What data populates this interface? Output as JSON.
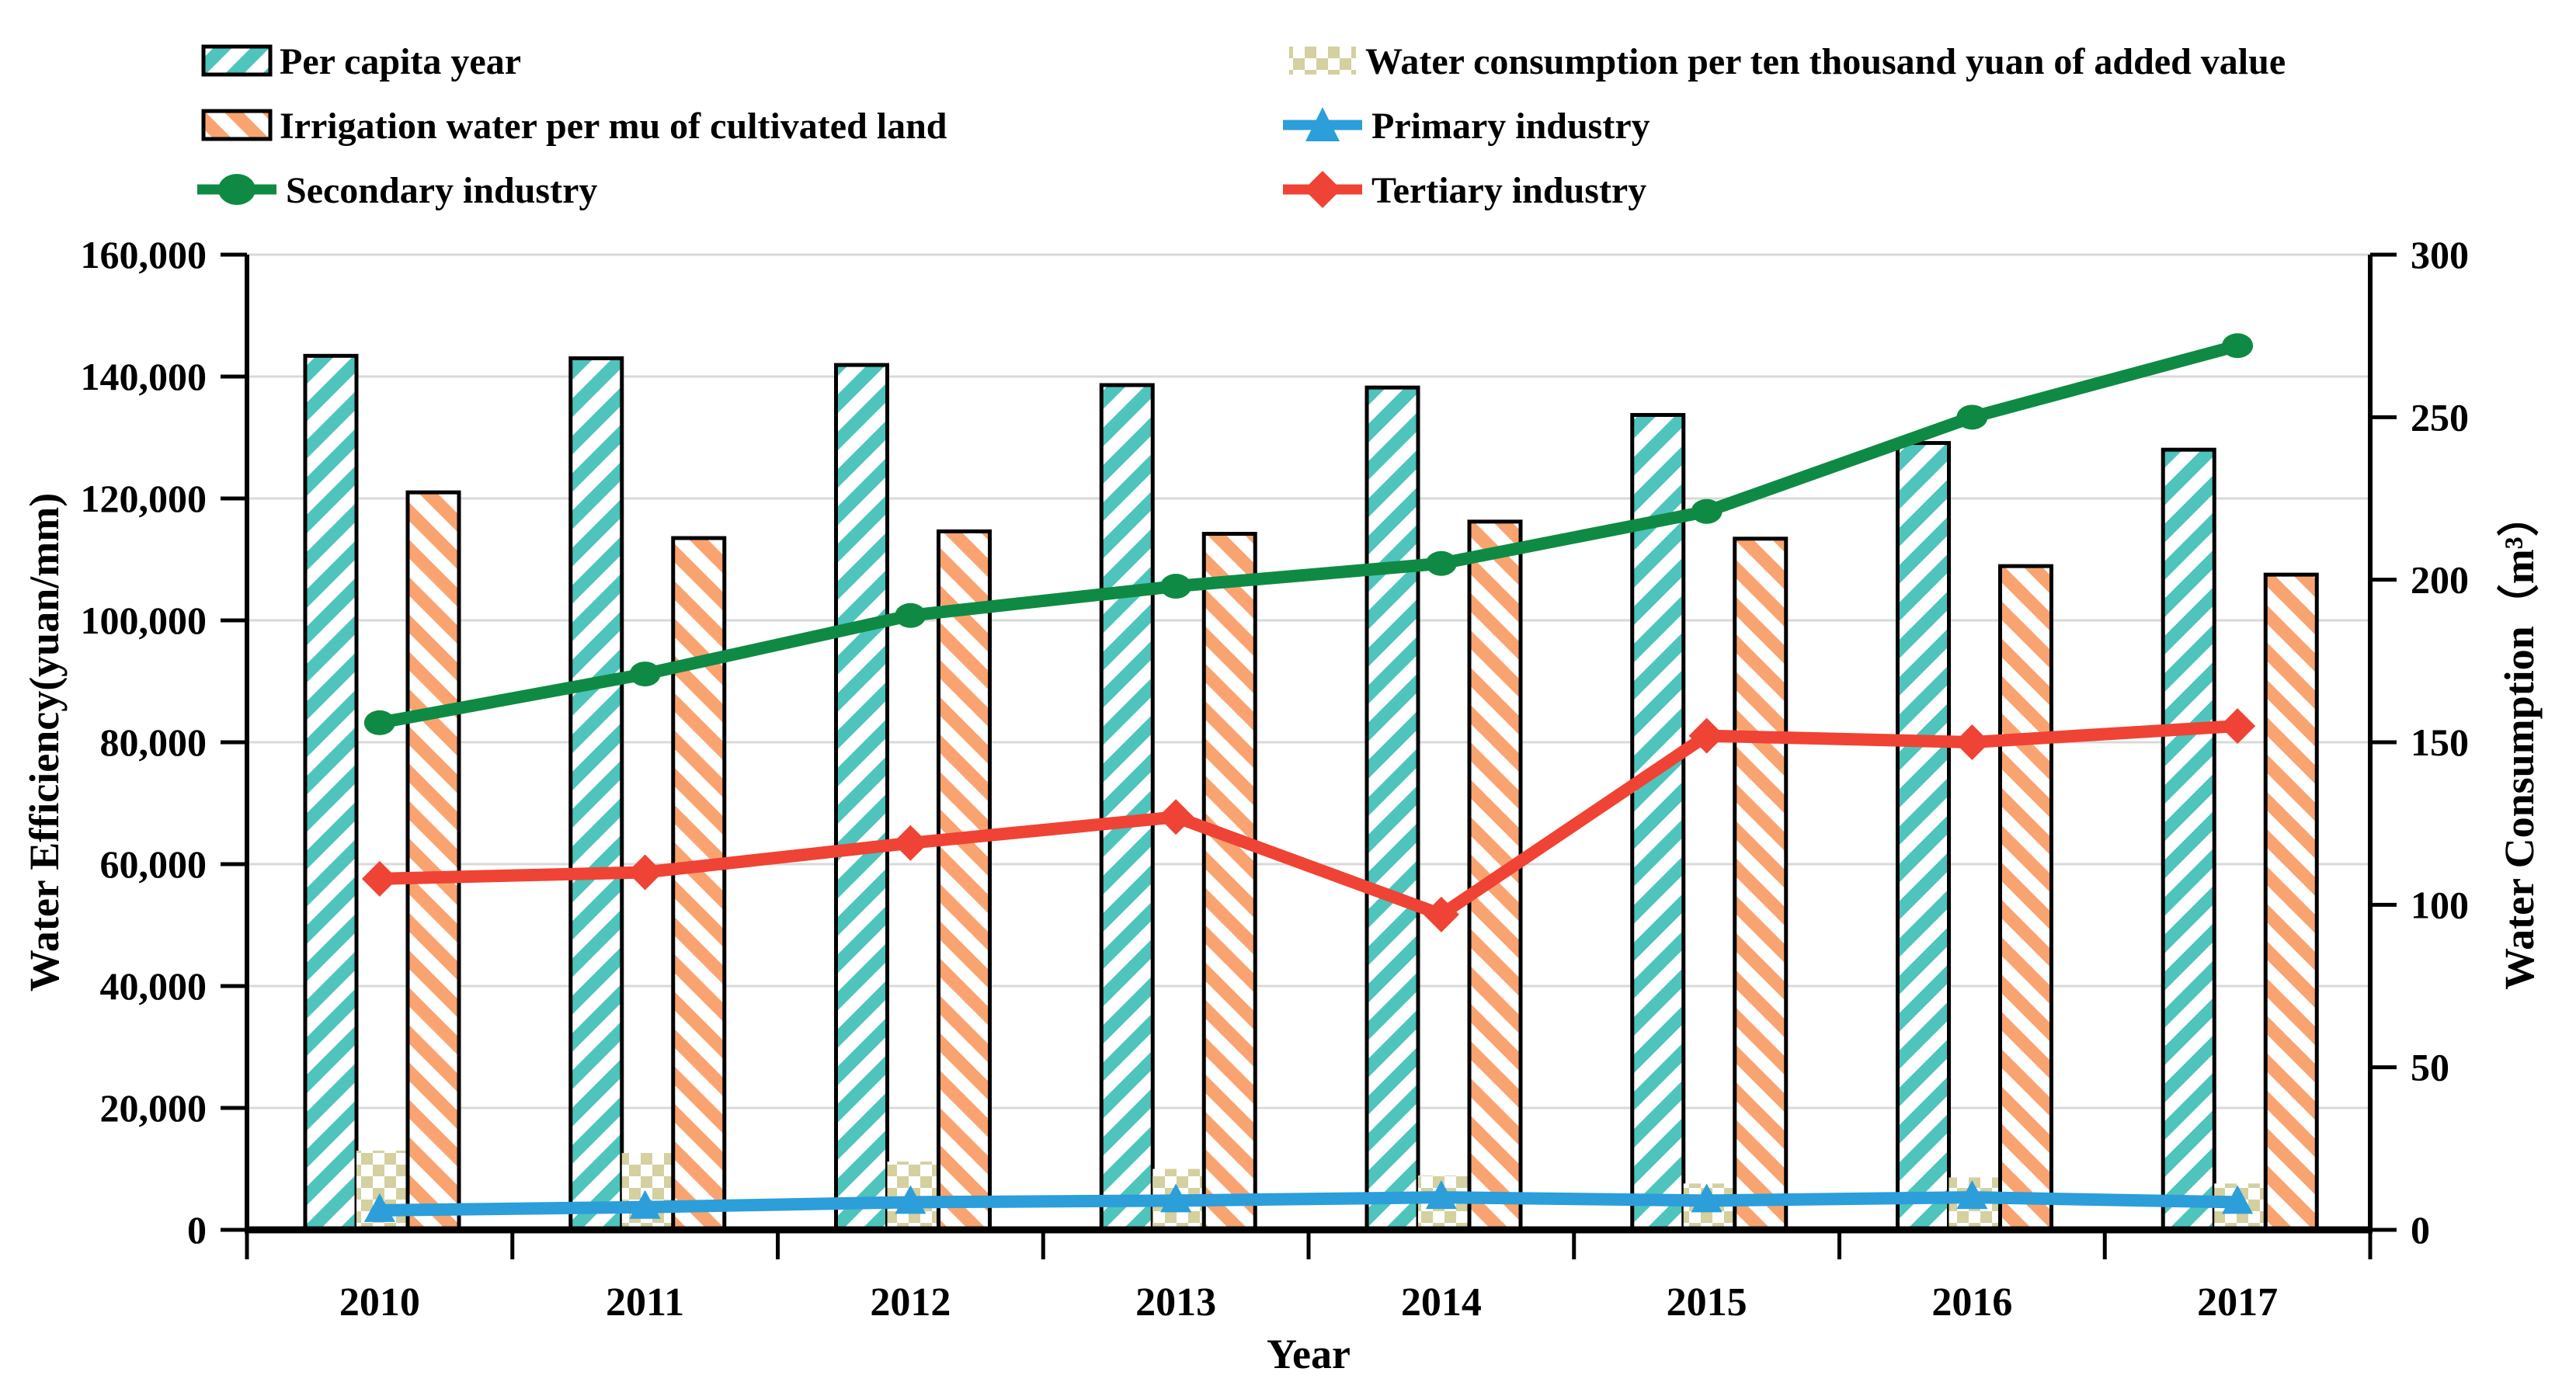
{
  "chart_data": {
    "type": "combo-bar-line",
    "categories": [
      "2010",
      "2011",
      "2012",
      "2013",
      "2014",
      "2015",
      "2016",
      "2017"
    ],
    "x_axis": {
      "title": "Year"
    },
    "left_axis": {
      "title": "Water Efficiency(yuan/mm)",
      "min": 0,
      "max": 160000,
      "step": 20000,
      "tick_labels": [
        "0",
        "20,000",
        "40,000",
        "60,000",
        "80,000",
        "100,000",
        "120,000",
        "140,000",
        "160,000"
      ]
    },
    "right_axis": {
      "title": "Water Consumption（m³）",
      "min": 0,
      "max": 300,
      "step": 50,
      "tick_labels": [
        "0",
        "50",
        "100",
        "150",
        "200",
        "250",
        "300"
      ]
    },
    "grid": {
      "horizontal": true,
      "color": "#d9d9d9"
    },
    "axis_color": "#000000",
    "series": [
      {
        "name": "Per capita year",
        "type": "bar",
        "axis": "left",
        "pattern": "teal-hatch",
        "color": "#4ec4bc",
        "values": [
          143400,
          143000,
          141900,
          138600,
          138200,
          133700,
          129100,
          128000
        ]
      },
      {
        "name": "Water consumption per ten thousand yuan of added value",
        "type": "bar",
        "axis": "left",
        "pattern": "khaki-check",
        "color": "#d4d0a0",
        "values": [
          13000,
          12600,
          11200,
          10000,
          8900,
          7600,
          8600,
          7600
        ]
      },
      {
        "name": "Irrigation water per mu of cultivated land",
        "type": "bar",
        "axis": "left",
        "pattern": "orange-hatch",
        "color": "#f9a470",
        "values": [
          121000,
          113500,
          114600,
          114200,
          116200,
          113400,
          108900,
          107500
        ]
      },
      {
        "name": "Primary industry",
        "type": "line",
        "axis": "right",
        "marker": "triangle",
        "color": "#2c9ed9",
        "values": [
          6,
          7,
          8.5,
          9,
          10,
          9,
          10,
          8.5
        ]
      },
      {
        "name": "Secondary industry",
        "type": "line",
        "axis": "right",
        "marker": "circle",
        "color": "#0f8a44",
        "values": [
          156,
          171,
          189,
          198,
          205,
          221,
          250,
          272
        ]
      },
      {
        "name": "Tertiary industry",
        "type": "line",
        "axis": "right",
        "marker": "diamond",
        "color": "#ef4335",
        "values": [
          108,
          110,
          119,
          127,
          97,
          152,
          150,
          155
        ]
      }
    ],
    "legend_position": "top"
  }
}
